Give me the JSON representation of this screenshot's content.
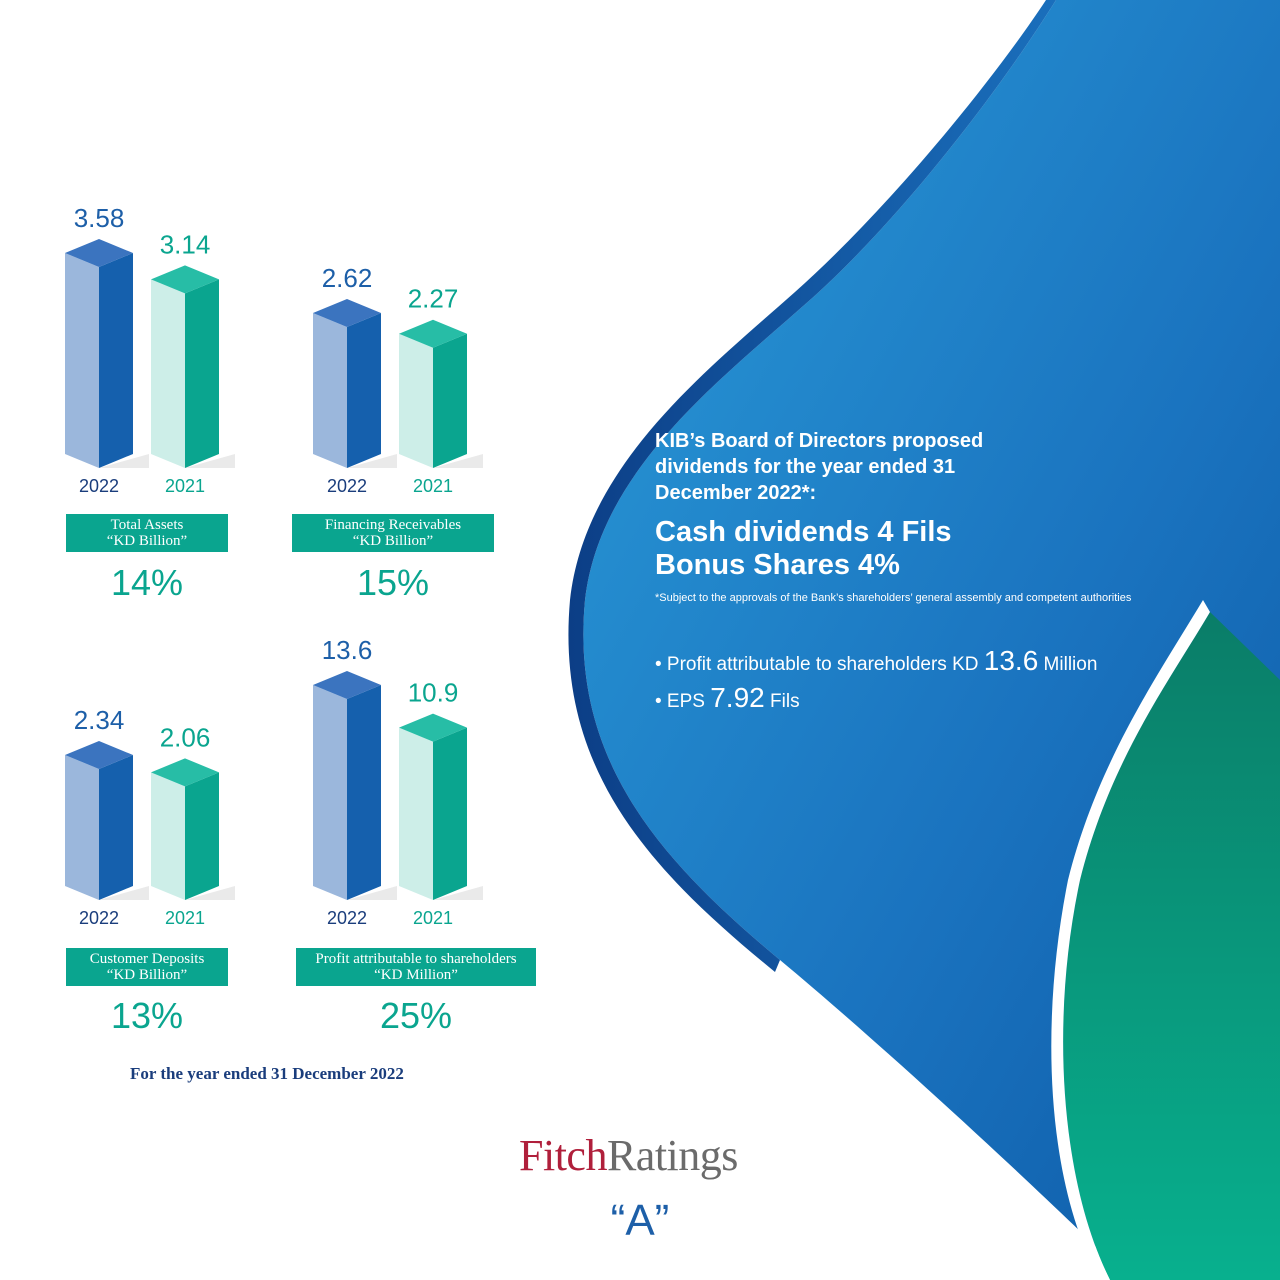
{
  "chart_data": [
    {
      "type": "bar",
      "title": "Total Assets",
      "unit": "“KD Billion”",
      "categories": [
        "2022",
        "2021"
      ],
      "values": [
        3.58,
        3.14
      ],
      "growth": "14%"
    },
    {
      "type": "bar",
      "title": "Financing Receivables",
      "unit": "“KD Billion”",
      "categories": [
        "2022",
        "2021"
      ],
      "values": [
        2.62,
        2.27
      ],
      "growth": "15%"
    },
    {
      "type": "bar",
      "title": "Customer Deposits",
      "unit": "“KD Billion”",
      "categories": [
        "2022",
        "2021"
      ],
      "values": [
        2.34,
        2.06
      ],
      "growth": "13%"
    },
    {
      "type": "bar",
      "title": "Profit attributable to shareholders",
      "unit": "“KD Million”",
      "categories": [
        "2022",
        "2021"
      ],
      "values": [
        13.6,
        10.9
      ],
      "growth": "25%"
    }
  ],
  "colors": {
    "bar_2022": "#1c5ea8",
    "bar_2021": "#0aa58f",
    "label_box": "#0aa58f",
    "panel_blue": "#1a7cc4",
    "panel_green": "#0b8f78"
  },
  "footnote": "For the year ended 31 December 2022",
  "rating": {
    "agency_part1": "Fitch",
    "agency_part2": "Ratings",
    "grade": "“A”"
  },
  "panel": {
    "board_text": "KIB’s Board of Directors proposed dividends for the year ended 31 December 2022*:",
    "cash_line": "Cash dividends 4 Fils",
    "bonus_line": "Bonus Shares 4%",
    "subject_note": "*Subject to the approvals of the Bank’s shareholders’ general assembly and competent authorities",
    "bullet1_prefix": "• Profit attributable to shareholders KD",
    "bullet1_value": "13.6",
    "bullet1_suffix": "Million",
    "bullet2_prefix": "• EPS",
    "bullet2_value": "7.92",
    "bullet2_suffix": "Fils"
  }
}
